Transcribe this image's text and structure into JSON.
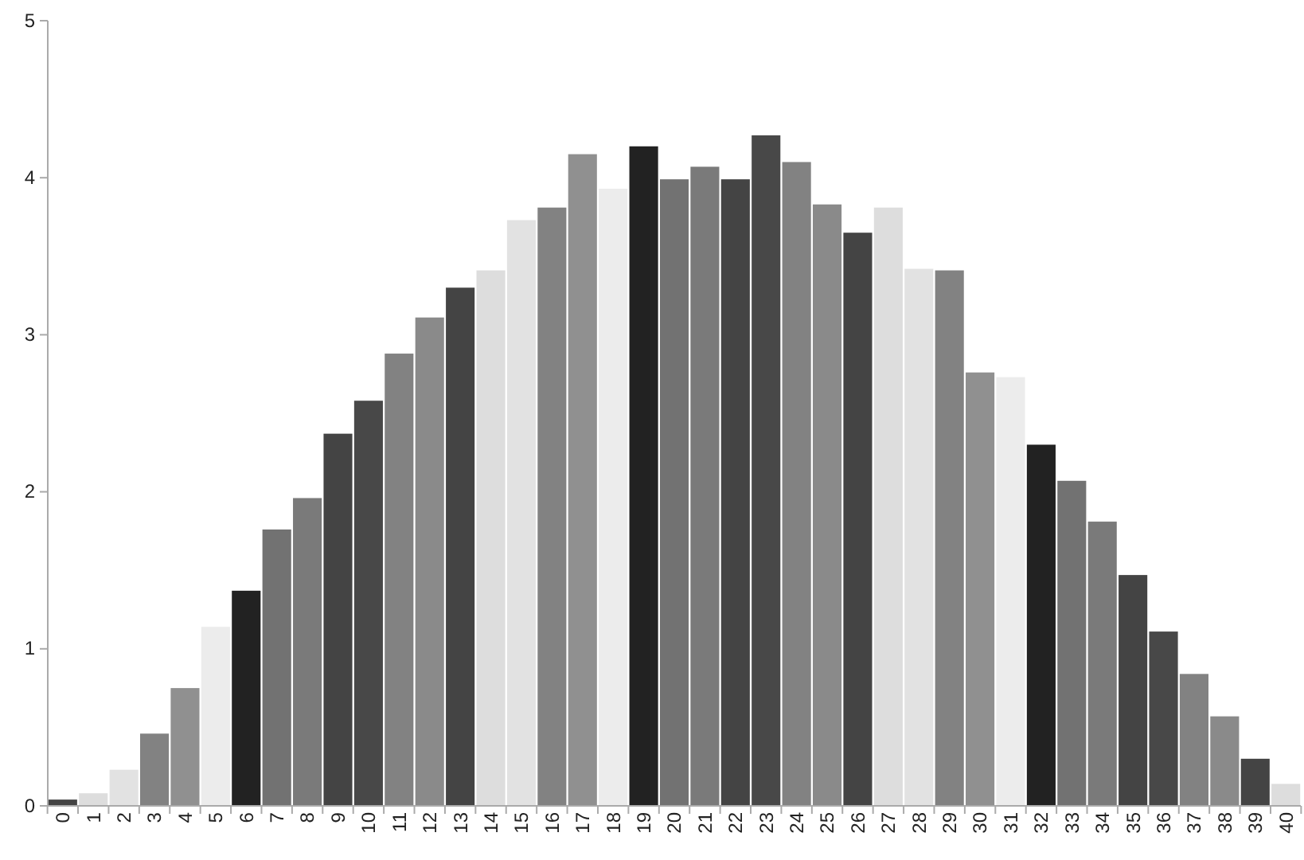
{
  "chart_data": {
    "type": "bar",
    "categories": [
      "0",
      "1",
      "2",
      "3",
      "4",
      "5",
      "6",
      "7",
      "8",
      "9",
      "10",
      "11",
      "12",
      "13",
      "14",
      "15",
      "16",
      "17",
      "18",
      "19",
      "20",
      "21",
      "22",
      "23",
      "24",
      "25",
      "26",
      "27",
      "28",
      "29",
      "30",
      "31",
      "32",
      "33",
      "34",
      "35",
      "36",
      "37",
      "38",
      "39",
      "40"
    ],
    "values": [
      0.04,
      0.08,
      0.23,
      0.46,
      0.75,
      1.14,
      1.37,
      1.76,
      1.96,
      2.37,
      2.58,
      2.88,
      3.11,
      3.3,
      3.41,
      3.73,
      3.81,
      4.15,
      3.93,
      4.2,
      3.99,
      4.07,
      3.99,
      4.27,
      4.1,
      3.83,
      3.65,
      3.81,
      3.42,
      3.41,
      2.76,
      2.73,
      2.3,
      2.07,
      1.81,
      1.47,
      1.11,
      0.84,
      0.57,
      0.3,
      0.14
    ],
    "colors": [
      "#444444",
      "#dddddd",
      "#e2e2e2",
      "#828282",
      "#909090",
      "#ececec",
      "#222222",
      "#727272",
      "#7a7a7a",
      "#444444",
      "#484848",
      "#828282",
      "#8a8a8a",
      "#444444",
      "#dddddd",
      "#e2e2e2",
      "#828282",
      "#909090",
      "#ececec",
      "#222222",
      "#727272",
      "#7a7a7a",
      "#444444",
      "#484848",
      "#828282",
      "#8a8a8a",
      "#444444",
      "#dddddd",
      "#e2e2e2",
      "#828282",
      "#909090",
      "#ececec",
      "#222222",
      "#727272",
      "#7a7a7a",
      "#444444",
      "#484848",
      "#828282",
      "#8a8a8a",
      "#444444",
      "#dddddd"
    ],
    "ylim": [
      0,
      5
    ],
    "yticks": [
      0,
      1,
      2,
      3,
      4,
      5
    ],
    "grid": false
  }
}
